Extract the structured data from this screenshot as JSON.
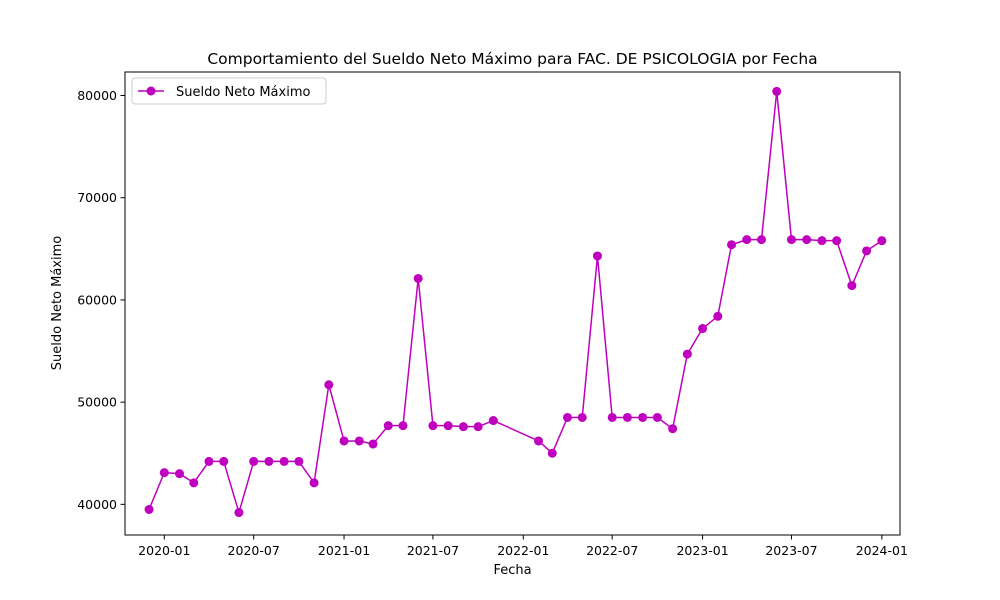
{
  "chart_data": {
    "type": "line",
    "title": "Comportamiento del Sueldo Neto Máximo para FAC. DE PSICOLOGIA por Fecha",
    "xlabel": "Fecha",
    "ylabel": "Sueldo Neto Máximo",
    "legend_position": "upper-left",
    "grid": false,
    "x_ticks": [
      "2020-01",
      "2020-07",
      "2021-01",
      "2021-07",
      "2022-01",
      "2022-07",
      "2023-01",
      "2023-07",
      "2024-01"
    ],
    "y_ticks": [
      40000,
      50000,
      60000,
      70000,
      80000
    ],
    "xlim": [
      "2019-10-13",
      "2024-02-07"
    ],
    "ylim": [
      37000,
      82300
    ],
    "series": [
      {
        "name": "Sueldo Neto Máximo",
        "color": "#bf00bf",
        "marker": "circle",
        "x": [
          "2019-12-01",
          "2020-01-01",
          "2020-02-01",
          "2020-03-01",
          "2020-04-01",
          "2020-05-01",
          "2020-06-01",
          "2020-07-01",
          "2020-08-01",
          "2020-09-01",
          "2020-10-01",
          "2020-11-01",
          "2020-12-01",
          "2021-01-01",
          "2021-02-01",
          "2021-03-01",
          "2021-04-01",
          "2021-05-01",
          "2021-06-01",
          "2021-07-01",
          "2021-08-01",
          "2021-09-01",
          "2021-10-01",
          "2021-11-01",
          "2022-02-01",
          "2022-03-01",
          "2022-04-01",
          "2022-05-01",
          "2022-06-01",
          "2022-07-01",
          "2022-08-01",
          "2022-09-01",
          "2022-10-01",
          "2022-11-01",
          "2022-12-01",
          "2023-01-01",
          "2023-02-01",
          "2023-03-01",
          "2023-04-01",
          "2023-05-01",
          "2023-06-01",
          "2023-07-01",
          "2023-08-01",
          "2023-09-01",
          "2023-10-01",
          "2023-11-01",
          "2023-12-01",
          "2024-01-01"
        ],
        "y": [
          39500,
          43100,
          43000,
          42100,
          44200,
          44200,
          39200,
          44200,
          44200,
          44200,
          44200,
          42100,
          51700,
          46200,
          46200,
          45900,
          47700,
          47700,
          62100,
          47700,
          47700,
          47600,
          47600,
          48200,
          46200,
          45000,
          48500,
          48500,
          64300,
          48500,
          48500,
          48500,
          48500,
          47400,
          54700,
          57200,
          58400,
          65400,
          65900,
          65900,
          80400,
          65900,
          65900,
          65800,
          65800,
          61400,
          64800,
          65800
        ]
      }
    ]
  }
}
